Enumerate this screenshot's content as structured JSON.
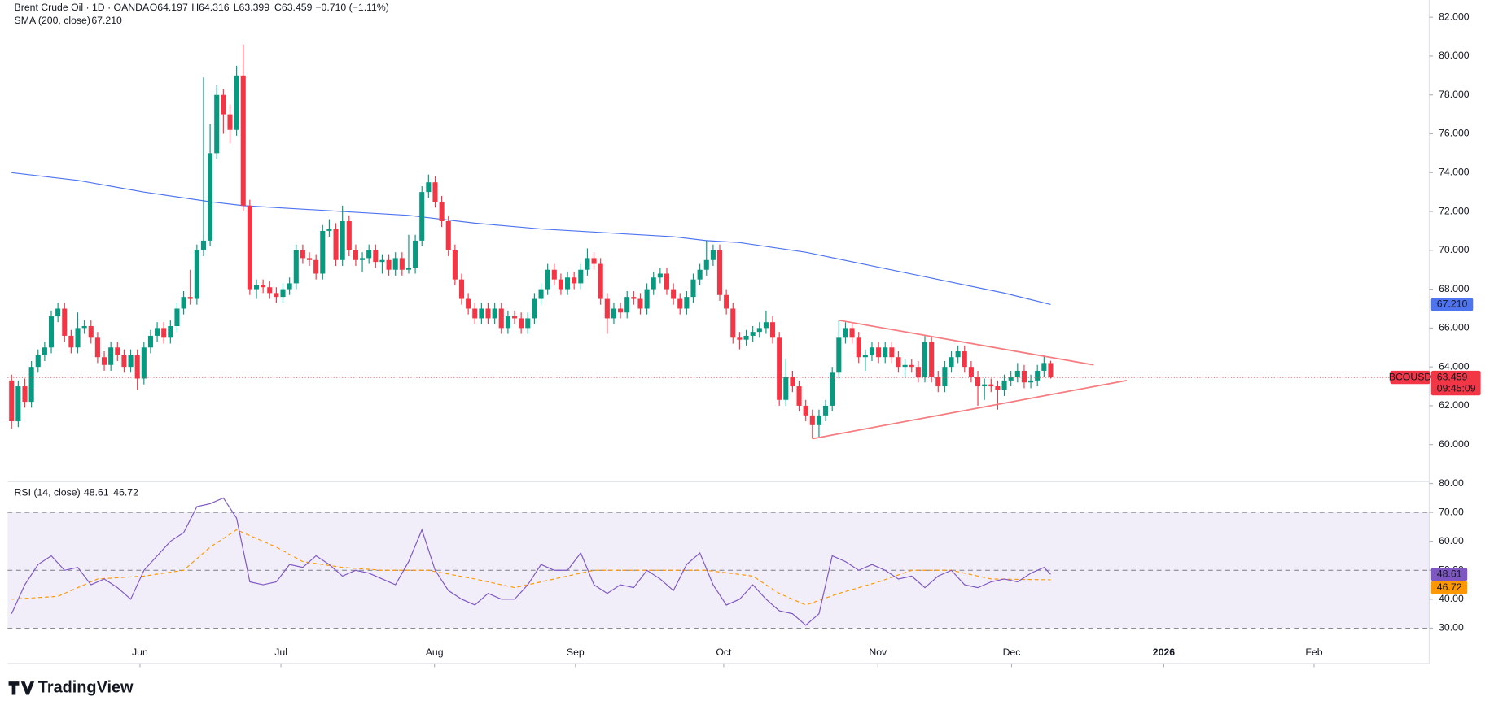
{
  "chart_data": {
    "type": "candlestick",
    "title": "Brent Crude Oil · 1D · OANDA",
    "header_fields": [
      "O64.197",
      "H64.316",
      "L63.399",
      "C63.459",
      "−0.710 (−1.11%)"
    ],
    "up_color": "#089981",
    "down_color": "#f23645",
    "candles": [
      [
        63.3,
        63.6,
        60.8,
        61.2
      ],
      [
        61.2,
        63.3,
        60.9,
        63.0
      ],
      [
        63.0,
        63.4,
        61.9,
        62.2
      ],
      [
        62.2,
        64.3,
        61.9,
        64.0
      ],
      [
        64.0,
        64.9,
        63.7,
        64.6
      ],
      [
        64.6,
        65.3,
        64.3,
        65.0
      ],
      [
        65.0,
        66.9,
        64.7,
        66.6
      ],
      [
        66.6,
        67.3,
        66.3,
        67.0
      ],
      [
        67.0,
        67.3,
        65.3,
        65.6
      ],
      [
        65.6,
        65.9,
        64.7,
        65.0
      ],
      [
        65.0,
        66.8,
        64.7,
        66.0
      ],
      [
        66.0,
        66.4,
        65.7,
        66.1
      ],
      [
        66.1,
        66.4,
        65.2,
        65.5
      ],
      [
        65.5,
        65.8,
        64.2,
        64.5
      ],
      [
        64.5,
        64.8,
        63.8,
        64.1
      ],
      [
        64.1,
        65.3,
        63.8,
        65.0
      ],
      [
        65.0,
        65.3,
        64.3,
        64.6
      ],
      [
        64.6,
        64.9,
        63.7,
        64.0
      ],
      [
        64.0,
        64.9,
        63.7,
        64.6
      ],
      [
        64.6,
        64.9,
        62.8,
        63.4
      ],
      [
        63.4,
        65.3,
        63.1,
        65.0
      ],
      [
        65.0,
        65.9,
        64.7,
        65.6
      ],
      [
        65.6,
        66.3,
        65.3,
        66.0
      ],
      [
        66.0,
        66.3,
        65.2,
        65.5
      ],
      [
        65.5,
        66.4,
        65.2,
        66.1
      ],
      [
        66.1,
        67.3,
        65.8,
        67.0
      ],
      [
        67.0,
        67.9,
        66.7,
        67.6
      ],
      [
        67.6,
        69.0,
        67.2,
        67.5
      ],
      [
        67.5,
        70.3,
        67.2,
        70.0
      ],
      [
        70.0,
        78.9,
        69.7,
        70.5
      ],
      [
        70.5,
        76.5,
        70.2,
        75.0
      ],
      [
        75.0,
        78.5,
        74.7,
        78.0
      ],
      [
        78.0,
        78.3,
        76.0,
        77.0
      ],
      [
        77.0,
        77.5,
        75.5,
        76.2
      ],
      [
        76.2,
        79.5,
        75.9,
        79.0
      ],
      [
        79.0,
        80.6,
        72.0,
        72.3
      ],
      [
        72.3,
        72.6,
        67.7,
        68.0
      ],
      [
        68.0,
        68.5,
        67.5,
        68.2
      ],
      [
        68.2,
        68.5,
        67.8,
        68.1
      ],
      [
        68.1,
        68.4,
        67.5,
        67.8
      ],
      [
        67.8,
        68.1,
        67.3,
        67.6
      ],
      [
        67.6,
        68.3,
        67.3,
        68.0
      ],
      [
        68.0,
        68.6,
        67.7,
        68.3
      ],
      [
        68.3,
        70.3,
        68.0,
        70.0
      ],
      [
        70.0,
        70.3,
        69.3,
        69.6
      ],
      [
        69.6,
        69.9,
        69.2,
        69.5
      ],
      [
        69.5,
        69.8,
        68.5,
        68.8
      ],
      [
        68.8,
        71.3,
        68.5,
        71.0
      ],
      [
        71.0,
        71.6,
        70.7,
        71.1
      ],
      [
        71.1,
        71.4,
        69.2,
        69.5
      ],
      [
        69.5,
        72.3,
        69.2,
        71.5
      ],
      [
        71.5,
        71.8,
        69.7,
        70.0
      ],
      [
        70.0,
        70.3,
        69.2,
        69.5
      ],
      [
        69.5,
        69.9,
        68.9,
        69.6
      ],
      [
        69.6,
        70.3,
        69.3,
        70.0
      ],
      [
        70.0,
        70.3,
        69.1,
        69.4
      ],
      [
        69.4,
        69.8,
        68.8,
        69.5
      ],
      [
        69.5,
        69.8,
        68.7,
        69.0
      ],
      [
        69.0,
        69.9,
        68.7,
        69.6
      ],
      [
        69.6,
        69.9,
        68.7,
        69.0
      ],
      [
        69.0,
        70.8,
        68.8,
        69.1
      ],
      [
        69.1,
        70.8,
        68.8,
        70.5
      ],
      [
        70.5,
        73.3,
        70.2,
        73.0
      ],
      [
        73.0,
        73.9,
        72.7,
        73.5
      ],
      [
        73.5,
        73.8,
        72.2,
        72.5
      ],
      [
        72.5,
        72.8,
        71.2,
        71.5
      ],
      [
        71.5,
        71.8,
        69.7,
        70.0
      ],
      [
        70.0,
        70.3,
        68.2,
        68.5
      ],
      [
        68.5,
        68.8,
        67.2,
        67.5
      ],
      [
        67.5,
        67.8,
        66.7,
        67.0
      ],
      [
        67.0,
        67.3,
        66.2,
        66.5
      ],
      [
        66.5,
        67.3,
        66.2,
        67.0
      ],
      [
        67.0,
        67.3,
        66.2,
        66.5
      ],
      [
        66.5,
        67.3,
        66.2,
        67.0
      ],
      [
        67.0,
        67.3,
        65.7,
        66.0
      ],
      [
        66.0,
        66.9,
        65.7,
        66.6
      ],
      [
        66.6,
        66.9,
        66.2,
        66.5
      ],
      [
        66.5,
        66.8,
        65.7,
        66.0
      ],
      [
        66.0,
        66.8,
        65.7,
        66.5
      ],
      [
        66.5,
        67.8,
        66.2,
        67.5
      ],
      [
        67.5,
        68.3,
        67.2,
        68.0
      ],
      [
        68.0,
        69.3,
        67.7,
        69.0
      ],
      [
        69.0,
        69.3,
        68.2,
        68.5
      ],
      [
        68.5,
        68.8,
        67.7,
        68.0
      ],
      [
        68.0,
        68.9,
        67.7,
        68.6
      ],
      [
        68.6,
        68.9,
        68.0,
        68.3
      ],
      [
        68.3,
        69.3,
        68.0,
        69.0
      ],
      [
        69.0,
        70.1,
        68.7,
        69.6
      ],
      [
        69.6,
        69.9,
        69.0,
        69.3
      ],
      [
        69.3,
        69.6,
        67.2,
        67.5
      ],
      [
        67.5,
        67.8,
        65.7,
        66.5
      ],
      [
        66.5,
        67.3,
        66.2,
        67.0
      ],
      [
        67.0,
        67.3,
        66.5,
        66.8
      ],
      [
        66.8,
        67.9,
        66.5,
        67.6
      ],
      [
        67.6,
        67.9,
        67.2,
        67.5
      ],
      [
        67.5,
        67.8,
        66.7,
        67.0
      ],
      [
        67.0,
        68.3,
        66.7,
        68.0
      ],
      [
        68.0,
        68.9,
        67.7,
        68.6
      ],
      [
        68.6,
        69.1,
        68.3,
        68.8
      ],
      [
        68.8,
        69.1,
        67.7,
        68.0
      ],
      [
        68.0,
        68.3,
        67.2,
        67.5
      ],
      [
        67.5,
        67.8,
        66.7,
        67.0
      ],
      [
        67.0,
        67.9,
        66.7,
        67.6
      ],
      [
        67.6,
        68.8,
        67.3,
        68.5
      ],
      [
        68.5,
        69.3,
        68.2,
        69.0
      ],
      [
        69.0,
        70.5,
        68.7,
        69.5
      ],
      [
        69.5,
        70.3,
        69.2,
        70.0
      ],
      [
        70.0,
        70.3,
        67.4,
        67.7
      ],
      [
        67.7,
        68.0,
        66.7,
        67.0
      ],
      [
        67.0,
        67.3,
        65.2,
        65.5
      ],
      [
        65.5,
        65.8,
        64.9,
        65.4
      ],
      [
        65.4,
        65.9,
        65.1,
        65.6
      ],
      [
        65.6,
        66.1,
        65.3,
        65.8
      ],
      [
        65.8,
        66.3,
        65.5,
        66.0
      ],
      [
        66.0,
        66.9,
        65.7,
        66.3
      ],
      [
        66.3,
        66.6,
        65.2,
        65.5
      ],
      [
        65.5,
        65.8,
        62.0,
        62.3
      ],
      [
        62.3,
        64.4,
        62.0,
        63.5
      ],
      [
        63.5,
        63.8,
        62.7,
        63.0
      ],
      [
        63.0,
        63.3,
        61.7,
        62.0
      ],
      [
        62.0,
        62.3,
        61.2,
        61.5
      ],
      [
        61.5,
        61.8,
        60.3,
        61.0
      ],
      [
        61.0,
        61.8,
        60.4,
        61.5
      ],
      [
        61.5,
        62.3,
        61.2,
        62.0
      ],
      [
        62.0,
        64.0,
        61.7,
        63.7
      ],
      [
        63.7,
        66.4,
        63.4,
        65.5
      ],
      [
        65.5,
        66.3,
        65.2,
        66.0
      ],
      [
        66.0,
        66.3,
        65.2,
        65.5
      ],
      [
        65.5,
        65.8,
        64.2,
        64.5
      ],
      [
        64.5,
        64.9,
        63.8,
        64.6
      ],
      [
        64.6,
        65.3,
        64.3,
        65.0
      ],
      [
        65.0,
        65.3,
        64.2,
        64.5
      ],
      [
        64.5,
        65.3,
        64.2,
        65.0
      ],
      [
        65.0,
        65.3,
        64.2,
        64.5
      ],
      [
        64.5,
        64.8,
        63.7,
        64.0
      ],
      [
        64.0,
        64.4,
        63.5,
        64.1
      ],
      [
        64.1,
        64.4,
        63.7,
        64.0
      ],
      [
        64.0,
        64.3,
        63.2,
        63.5
      ],
      [
        63.5,
        65.6,
        63.2,
        65.3
      ],
      [
        65.3,
        65.6,
        63.2,
        63.5
      ],
      [
        63.5,
        63.8,
        62.7,
        63.0
      ],
      [
        63.0,
        64.3,
        62.7,
        64.0
      ],
      [
        64.0,
        64.8,
        63.7,
        64.5
      ],
      [
        64.5,
        65.1,
        64.2,
        64.8
      ],
      [
        64.8,
        65.1,
        63.7,
        64.0
      ],
      [
        64.0,
        64.3,
        63.2,
        63.5
      ],
      [
        63.5,
        63.8,
        62.0,
        63.0
      ],
      [
        63.0,
        63.4,
        62.3,
        63.1
      ],
      [
        63.1,
        63.4,
        62.7,
        63.0
      ],
      [
        63.0,
        63.3,
        61.8,
        62.8
      ],
      [
        62.8,
        63.6,
        62.5,
        63.3
      ],
      [
        63.3,
        63.8,
        63.0,
        63.5
      ],
      [
        63.5,
        64.2,
        63.2,
        63.8
      ],
      [
        63.8,
        64.1,
        62.9,
        63.2
      ],
      [
        63.2,
        63.6,
        62.9,
        63.3
      ],
      [
        63.3,
        64.1,
        63.0,
        63.8
      ],
      [
        63.8,
        64.6,
        63.5,
        64.2
      ],
      [
        64.197,
        64.316,
        63.399,
        63.459
      ]
    ],
    "xlim": [
      -0.6,
      214.2
    ],
    "xticks": [
      {
        "value": 19.4,
        "label": "Jun"
      },
      {
        "value": 40.7,
        "label": "Jul"
      },
      {
        "value": 63.9,
        "label": "Aug"
      },
      {
        "value": 85.2,
        "label": "Sep"
      },
      {
        "value": 107.6,
        "label": "Oct"
      },
      {
        "value": 130.9,
        "label": "Nov"
      },
      {
        "value": 151.1,
        "label": "Dec"
      },
      {
        "value": 174.1,
        "label": "2026"
      },
      {
        "value": 196.8,
        "label": "Feb"
      }
    ],
    "ylim": [
      58.14,
      82.88
    ],
    "yticks": [
      {
        "value": 60,
        "label": "60.000"
      },
      {
        "value": 62,
        "label": "62.000"
      },
      {
        "value": 64,
        "label": "64.000"
      },
      {
        "value": 66,
        "label": "66.000"
      },
      {
        "value": 68,
        "label": "68.000"
      },
      {
        "value": 70,
        "label": "70.000"
      },
      {
        "value": 72,
        "label": "72.000"
      },
      {
        "value": 74,
        "label": "74.000"
      },
      {
        "value": 76,
        "label": "76.000"
      },
      {
        "value": 78,
        "label": "78.000"
      },
      {
        "value": 80,
        "label": "80.000"
      },
      {
        "value": 82,
        "label": "82.000"
      }
    ],
    "sma": {
      "name": "SMA (200, close)",
      "value_label": "67.210",
      "color": "#4f74f0",
      "x": [
        0,
        10,
        20,
        30,
        35,
        50,
        60,
        70,
        80,
        90,
        100,
        105,
        110,
        120,
        130,
        140,
        150,
        157
      ],
      "values": [
        74.0,
        73.6,
        73.0,
        72.5,
        72.3,
        72.0,
        71.8,
        71.4,
        71.1,
        70.9,
        70.7,
        70.5,
        70.4,
        69.9,
        69.2,
        68.5,
        67.8,
        67.21
      ]
    },
    "last_price": {
      "symbol": "BCOUSD",
      "countdown": "09:45:09",
      "color": "#f23645"
    },
    "trendlines": [
      {
        "x": [
          125,
          163.5
        ],
        "y": [
          66.4,
          64.1
        ],
        "color": "#f77c80"
      },
      {
        "x": [
          121,
          168.5
        ],
        "y": [
          60.3,
          63.3
        ],
        "color": "#f77c80"
      }
    ],
    "rsi": {
      "name": "RSI (14, close)",
      "color": "#7e57c2",
      "x": [
        0,
        2,
        4,
        6,
        8,
        10,
        12,
        14,
        16,
        18,
        20,
        22,
        24,
        26,
        28,
        30,
        32,
        34,
        36,
        38,
        40,
        42,
        44,
        46,
        48,
        50,
        52,
        54,
        56,
        58,
        60,
        62,
        64,
        66,
        68,
        70,
        72,
        74,
        76,
        78,
        80,
        82,
        84,
        86,
        88,
        90,
        92,
        94,
        96,
        98,
        100,
        102,
        104,
        106,
        108,
        110,
        112,
        114,
        116,
        118,
        120,
        122,
        124,
        126,
        128,
        130,
        132,
        134,
        136,
        138,
        140,
        142,
        144,
        146,
        148,
        150,
        152,
        154,
        156,
        157
      ],
      "values": [
        35,
        45,
        52,
        55,
        50,
        51,
        45,
        47,
        44,
        40,
        50,
        55,
        60,
        63,
        72,
        73,
        75,
        68,
        46,
        45,
        46,
        52,
        51,
        55,
        52,
        48,
        50,
        49,
        47,
        45,
        53,
        64,
        50,
        43,
        40,
        38,
        42,
        40,
        40,
        45,
        52,
        50,
        50,
        56,
        45,
        42,
        45,
        44,
        50,
        47,
        43,
        52,
        56,
        45,
        38,
        40,
        45,
        40,
        36,
        35,
        31,
        35,
        55,
        53,
        50,
        52,
        50,
        47,
        48,
        44,
        48,
        50,
        45,
        44,
        46,
        47,
        46,
        49,
        51,
        48.61
      ],
      "ma": {
        "color": "#ff9800",
        "x": [
          0,
          7,
          13,
          20,
          26,
          30,
          34,
          40,
          44,
          50,
          56,
          63,
          70,
          76,
          82,
          88,
          96,
          105,
          112,
          116,
          120,
          125,
          131,
          136,
          142,
          148,
          157
        ],
        "values": [
          40,
          41,
          47,
          48,
          50,
          58,
          64,
          58,
          53,
          51,
          50,
          50,
          47,
          44,
          47,
          50,
          50,
          50,
          48,
          42,
          38,
          42,
          46,
          50,
          50,
          47,
          46.72
        ]
      },
      "ylim": [
        17.8,
        80.3
      ],
      "yticks": [
        {
          "value": 30,
          "label": "30.00"
        },
        {
          "value": 40,
          "label": "40.00"
        },
        {
          "value": 50,
          "label": "50.00"
        },
        {
          "value": 60,
          "label": "60.00"
        },
        {
          "value": 70,
          "label": "70.00"
        },
        {
          "value": 80,
          "label": "80.00"
        }
      ],
      "levels": [
        30,
        50,
        70
      ]
    },
    "brand": "TradingView"
  }
}
